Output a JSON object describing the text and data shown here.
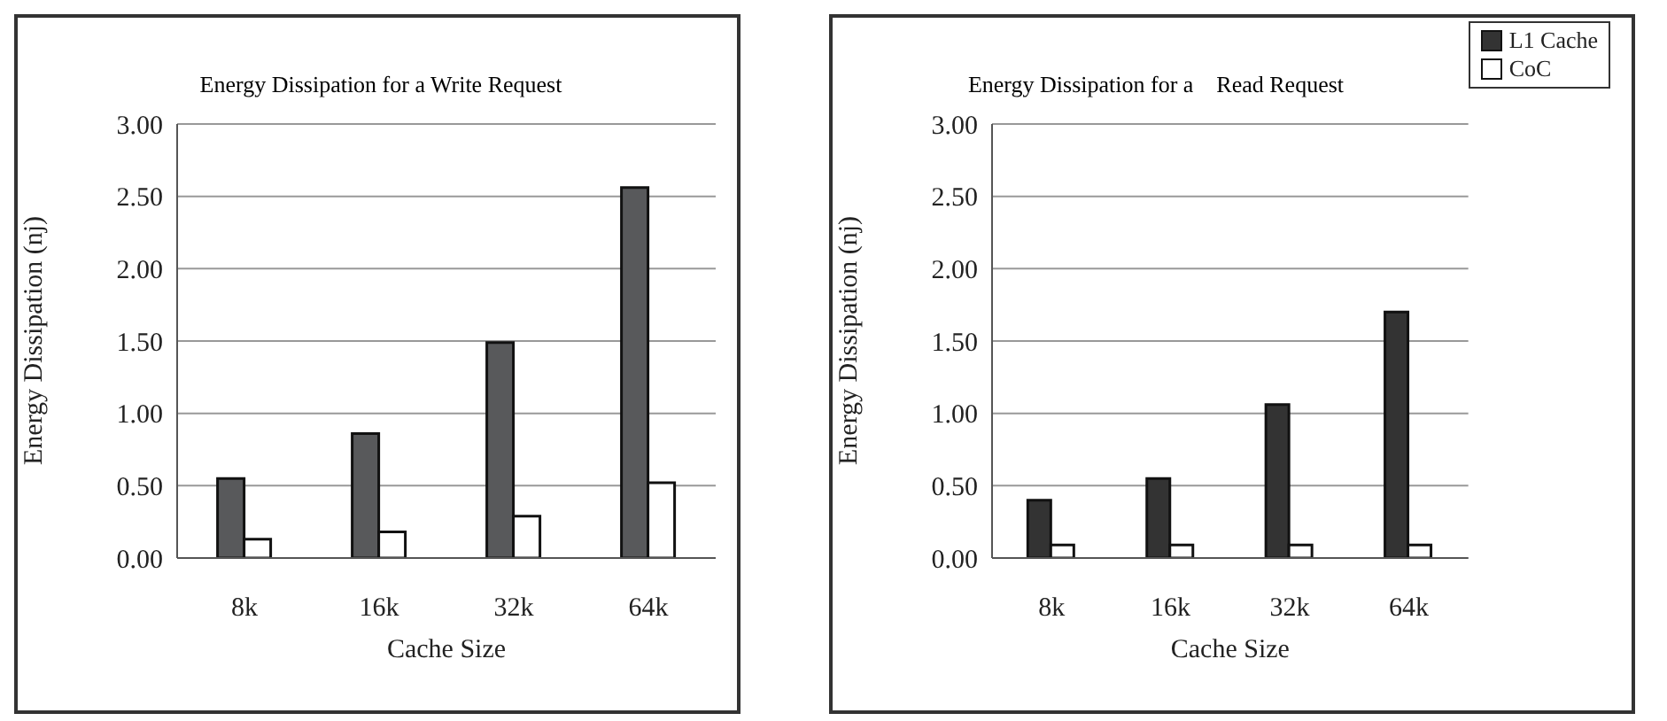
{
  "chart_data": [
    {
      "type": "bar",
      "title": "Energy Dissipation for a Write Request",
      "xlabel": "Cache Size",
      "ylabel": "Energy Dissipation (nj)",
      "categories": [
        "8k",
        "16k",
        "32k",
        "64k"
      ],
      "series": [
        {
          "color": "#58595b",
          "values": [
            0.55,
            0.86,
            1.49,
            2.56
          ]
        },
        {
          "color": "#ffffff",
          "values": [
            0.13,
            0.18,
            0.29,
            0.52
          ]
        }
      ],
      "ylim": [
        0,
        3
      ],
      "yticks": [
        {
          "value": 0,
          "label": "0.00"
        },
        {
          "value": 0.5,
          "label": "0.50"
        },
        {
          "value": 1,
          "label": "1.00"
        },
        {
          "value": 1.5,
          "label": "1.50"
        },
        {
          "value": 2,
          "label": "2.00"
        },
        {
          "value": 2.5,
          "label": "2.50"
        },
        {
          "value": 3,
          "label": "3.00"
        }
      ],
      "grid": "y",
      "legend": false
    },
    {
      "type": "bar",
      "title": "Energy Dissipation for a    Read Request",
      "xlabel": "Cache Size",
      "ylabel": "Energy Dissipation (nj)",
      "categories": [
        "8k",
        "16k",
        "32k",
        "64k"
      ],
      "series": [
        {
          "name": "L1 Cache",
          "color": "#333333",
          "values": [
            0.4,
            0.55,
            1.06,
            1.7
          ]
        },
        {
          "name": "CoC",
          "color": "#ffffff",
          "values": [
            0.09,
            0.09,
            0.09,
            0.09
          ]
        }
      ],
      "ylim": [
        0,
        3
      ],
      "yticks": [
        {
          "value": 0,
          "label": "0.00"
        },
        {
          "value": 0.5,
          "label": "0.50"
        },
        {
          "value": 1,
          "label": "1.00"
        },
        {
          "value": 1.5,
          "label": "1.50"
        },
        {
          "value": 2,
          "label": "2.00"
        },
        {
          "value": 2.5,
          "label": "2.50"
        },
        {
          "value": 3,
          "label": "3.00"
        }
      ],
      "grid": "y",
      "legend": "top right"
    }
  ]
}
